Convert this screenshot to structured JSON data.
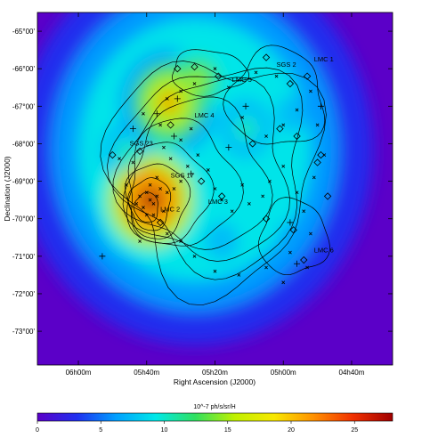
{
  "chart_data": {
    "type": "heatmap",
    "title": "",
    "xlabel": "Right Ascension (J2000)",
    "ylabel": "Declination (J2000)",
    "x_ticks": [
      "06h00m",
      "05h40m",
      "05h20m",
      "05h00m",
      "04h40m"
    ],
    "y_ticks": [
      "-65°00'",
      "-66°00'",
      "-67°00'",
      "-68°00'",
      "-69°00'",
      "-70°00'",
      "-71°00'",
      "-72°00'",
      "-73°00'"
    ],
    "x_tick_values_ra_min": [
      360,
      340,
      320,
      300,
      280
    ],
    "y_tick_values_deg": [
      -65,
      -66,
      -67,
      -68,
      -69,
      -70,
      -71,
      -72,
      -73
    ],
    "xlim_ra_min": [
      372,
      268
    ],
    "ylim_deg": [
      -73.9,
      -64.5
    ],
    "colorbar": {
      "label": "10^-7 ph/s/sr/H",
      "ticks": [
        "0",
        "5",
        "10",
        "15",
        "20",
        "25"
      ],
      "tick_values": [
        0,
        5,
        10,
        15,
        20,
        25
      ],
      "range": [
        0,
        28
      ],
      "colors": [
        "#5b00c8",
        "#2030f0",
        "#00a0ff",
        "#00e8e8",
        "#30e060",
        "#c0f000",
        "#f8e800",
        "#ff9000",
        "#f03000",
        "#a00000"
      ]
    },
    "peaks": [
      {
        "ra_min": 338.8,
        "dec_deg": -69.5,
        "value": 27
      },
      {
        "ra_min": 333.5,
        "dec_deg": -66.9,
        "value": 22
      },
      {
        "ra_min": 325,
        "dec_deg": -66.3,
        "value": 17
      },
      {
        "ra_min": 311,
        "dec_deg": -67.6,
        "value": 12
      },
      {
        "ra_min": 297,
        "dec_deg": -67.2,
        "value": 10
      },
      {
        "ra_min": 318,
        "dec_deg": -70.6,
        "value": 10
      },
      {
        "ra_min": 346,
        "dec_deg": -68.2,
        "value": 11
      },
      {
        "ra_min": 300,
        "dec_deg": -70.3,
        "value": 7
      }
    ],
    "region_labels": [
      {
        "text": "SGS 2",
        "ra_min": 302,
        "dec_deg": -65.95
      },
      {
        "text": "LMC 1",
        "ra_min": 291,
        "dec_deg": -65.8
      },
      {
        "text": "LMC 5",
        "ra_min": 315,
        "dec_deg": -66.35
      },
      {
        "text": "LMC 4",
        "ra_min": 326,
        "dec_deg": -67.3
      },
      {
        "text": "SGS 23",
        "ra_min": 345,
        "dec_deg": -68.05
      },
      {
        "text": "SGS 17",
        "ra_min": 333,
        "dec_deg": -68.9
      },
      {
        "text": "LMC 2",
        "ra_min": 336,
        "dec_deg": -69.8
      },
      {
        "text": "LMC 3",
        "ra_min": 322,
        "dec_deg": -69.6
      },
      {
        "text": "LMC 6",
        "ra_min": 291,
        "dec_deg": -70.9
      }
    ],
    "crosses": [
      [
        340,
        -69.3
      ],
      [
        339,
        -69.5
      ],
      [
        338,
        -69.6
      ],
      [
        341,
        -69.7
      ],
      [
        337,
        -69.4
      ],
      [
        336,
        -69.2
      ],
      [
        339,
        -69.1
      ],
      [
        342,
        -69.4
      ],
      [
        335,
        -69.8
      ],
      [
        338,
        -69.9
      ],
      [
        343,
        -69.6
      ],
      [
        334,
        -69.3
      ],
      [
        340,
        -69.9
      ],
      [
        337,
        -68.9
      ],
      [
        332,
        -69.2
      ],
      [
        330,
        -69.0
      ],
      [
        328,
        -68.6
      ],
      [
        333,
        -68.4
      ],
      [
        335,
        -68.1
      ],
      [
        330,
        -67.9
      ],
      [
        327,
        -67.6
      ],
      [
        325,
        -68.3
      ],
      [
        322,
        -68.7
      ],
      [
        320,
        -69.2
      ],
      [
        318,
        -69.5
      ],
      [
        315,
        -69.8
      ],
      [
        312,
        -69.1
      ],
      [
        310,
        -69.6
      ],
      [
        306,
        -69.4
      ],
      [
        304,
        -69.0
      ],
      [
        300,
        -68.6
      ],
      [
        296,
        -69.3
      ],
      [
        294,
        -69.8
      ],
      [
        292,
        -70.4
      ],
      [
        298,
        -70.9
      ],
      [
        305,
        -71.3
      ],
      [
        313,
        -71.5
      ],
      [
        320,
        -71.4
      ],
      [
        326,
        -71.0
      ],
      [
        330,
        -70.6
      ],
      [
        334,
        -70.4
      ],
      [
        346,
        -69.1
      ],
      [
        344,
        -68.5
      ],
      [
        348,
        -68.4
      ],
      [
        341,
        -67.2
      ],
      [
        334,
        -66.8
      ],
      [
        330,
        -66.6
      ],
      [
        326,
        -66.4
      ],
      [
        320,
        -66.0
      ],
      [
        316,
        -66.5
      ],
      [
        312,
        -67.3
      ],
      [
        305,
        -67.8
      ],
      [
        300,
        -67.5
      ],
      [
        296,
        -67.1
      ],
      [
        292,
        -66.6
      ],
      [
        290,
        -67.5
      ],
      [
        288,
        -68.3
      ],
      [
        291,
        -68.9
      ],
      [
        302,
        -66.2
      ],
      [
        308,
        -66.1
      ],
      [
        336,
        -67.5
      ],
      [
        342,
        -70.6
      ],
      [
        300,
        -71.7
      ],
      [
        293,
        -71.3
      ]
    ],
    "pluses": [
      [
        337,
        -67.2
      ],
      [
        331,
        -66.8
      ],
      [
        344,
        -67.6
      ],
      [
        327,
        -68.8
      ],
      [
        316,
        -68.1
      ],
      [
        289,
        -67.0
      ],
      [
        298,
        -70.1
      ],
      [
        353,
        -71.0
      ],
      [
        332,
        -67.8
      ],
      [
        296,
        -71.2
      ],
      [
        311,
        -67.0
      ]
    ],
    "diamonds": [
      [
        331,
        -66.0
      ],
      [
        326,
        -65.95
      ],
      [
        342,
        -68.2
      ],
      [
        333,
        -67.5
      ],
      [
        324,
        -69.0
      ],
      [
        318,
        -69.4
      ],
      [
        319,
        -66.2
      ],
      [
        305,
        -65.7
      ],
      [
        298,
        -66.4
      ],
      [
        293,
        -66.2
      ],
      [
        301,
        -67.6
      ],
      [
        296,
        -67.8
      ],
      [
        290,
        -68.5
      ],
      [
        289,
        -68.3
      ],
      [
        297,
        -70.3
      ],
      [
        294,
        -71.1
      ],
      [
        336,
        -70.1
      ],
      [
        350,
        -68.3
      ],
      [
        309,
        -68.0
      ],
      [
        287,
        -69.4
      ],
      [
        305,
        -70.0
      ]
    ],
    "contours": [
      {
        "ra_min": 320,
        "dec_deg": -68.7,
        "sx": 30,
        "sy": 3.05,
        "amp": 0.15
      },
      {
        "ra_min": 320,
        "dec_deg": -68.6,
        "sx": 27,
        "sy": 2.7,
        "amp": 0.13
      },
      {
        "ra_min": 322,
        "dec_deg": -68.7,
        "sx": 24,
        "sy": 2.35,
        "amp": 0.12
      },
      {
        "ra_min": 325,
        "dec_deg": -68.9,
        "sx": 20,
        "sy": 2.0,
        "amp": 0.11
      },
      {
        "ra_min": 330,
        "dec_deg": -69.1,
        "sx": 16,
        "sy": 1.7,
        "amp": 0.1
      },
      {
        "ra_min": 334,
        "dec_deg": -69.3,
        "sx": 12,
        "sy": 1.35,
        "amp": 0.09
      },
      {
        "ra_min": 337,
        "dec_deg": -69.5,
        "sx": 9,
        "sy": 1.0,
        "amp": 0.08
      },
      {
        "ra_min": 339,
        "dec_deg": -69.6,
        "sx": 6,
        "sy": 0.7,
        "amp": 0.07
      },
      {
        "ra_min": 340,
        "dec_deg": -69.7,
        "sx": 3.5,
        "sy": 0.4,
        "amp": 0.06
      },
      {
        "ra_min": 302,
        "dec_deg": -66.8,
        "sx": 14,
        "sy": 1.3,
        "amp": 0.1
      },
      {
        "ra_min": 297,
        "dec_deg": -70.5,
        "sx": 10,
        "sy": 1.0,
        "amp": 0.08
      },
      {
        "ra_min": 322,
        "dec_deg": -66.1,
        "sx": 11,
        "sy": 0.6,
        "amp": 0.08
      }
    ]
  }
}
